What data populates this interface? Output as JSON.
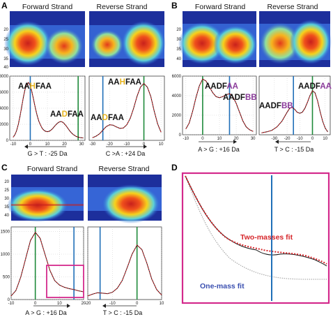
{
  "colors": {
    "green": "#1e8a3a",
    "blue": "#1f6fb8",
    "red_fit": "#d6262b",
    "black_data": "#111111",
    "magenta": "#d42a8c",
    "purple": "#8a3a9a",
    "yellow": "#e6b31e",
    "grey_dots": "#9a9a9a"
  },
  "panels": {
    "A": {
      "label": "A",
      "left_title": "Forward Strand",
      "right_title": "Reverse Strand",
      "left_caption": "G > T : -25 Da",
      "right_caption": "C >A : +24 Da",
      "left_pep1": {
        "p1": "AA",
        "p2": "H",
        "p3": "FAA"
      },
      "left_pep2": {
        "p1": "AA",
        "p2": "D",
        "p3": "FAA"
      },
      "right_pep1": {
        "p1": "AA",
        "p2": "H",
        "p3": "FAA"
      },
      "right_pep2": {
        "p1": "AA",
        "p2": "D",
        "p3": "FAA"
      }
    },
    "B": {
      "label": "B",
      "left_title": "Forward Strand",
      "right_title": "Reverse Strand",
      "left_caption": "A > G : +16 Da",
      "right_caption": "T > C : -15 Da",
      "left_pep1": {
        "p1": "AADF",
        "p2": "AA"
      },
      "left_pep2": {
        "p1": "AADF",
        "p2": "BB"
      },
      "right_pep1": {
        "p1": "AADF",
        "p2": "BB"
      },
      "right_pep2": {
        "p1": "AADF",
        "p2": "AA"
      }
    },
    "C": {
      "label": "C",
      "left_title": "Forward Strand",
      "right_title": "Reverse Strand",
      "left_caption": "A > G : +16 Da",
      "right_caption": "T > C : -15 Da"
    },
    "D": {
      "label": "D",
      "two_mass_label": "Two-masses fit",
      "one_mass_label": "One-mass fit"
    }
  },
  "chart_data": [
    {
      "id": "A-left",
      "type": "line",
      "x": [
        -10,
        -9,
        -8,
        -7,
        -6,
        -5,
        -4,
        -3,
        -2,
        -1,
        0,
        1,
        2,
        3,
        4,
        5,
        6,
        7,
        8,
        9,
        10,
        11,
        12,
        13,
        14,
        15,
        16,
        17,
        18,
        19,
        20,
        21,
        22,
        23,
        24,
        25,
        26,
        27,
        28,
        29,
        30,
        31
      ],
      "series": [
        {
          "values": [
            400,
            700,
            1200,
            2000,
            3000,
            4200,
            5400,
            6400,
            7000,
            7200,
            6800,
            6000,
            5000,
            4000,
            3100,
            2400,
            1900,
            1500,
            1250,
            1120,
            1080,
            1120,
            1250,
            1450,
            1700,
            1950,
            2150,
            2300,
            2350,
            2250,
            2050,
            1800,
            1500,
            1200,
            950,
            750,
            600,
            480,
            400,
            350,
            320,
            300
          ]
        }
      ],
      "xlim": [
        -12,
        32
      ],
      "ylim": [
        0,
        8000
      ],
      "xticks": [
        -10,
        0,
        10,
        20,
        30
      ],
      "yticks": [
        0,
        2000,
        4000,
        6000,
        8000
      ],
      "markers": {
        "green": 28,
        "blue": 0
      }
    },
    {
      "id": "A-right",
      "type": "line",
      "x": [
        -30,
        -28,
        -26,
        -24,
        -22,
        -20,
        -18,
        -16,
        -14,
        -12,
        -10,
        -8,
        -6,
        -4,
        -2,
        0,
        2,
        4,
        6,
        8,
        10
      ],
      "series": [
        {
          "values": [
            300,
            450,
            700,
            1100,
            1500,
            1700,
            1650,
            1450,
            1300,
            1350,
            1700,
            2400,
            3500,
            4800,
            5800,
            6200,
            5800,
            4800,
            3200,
            1800,
            900
          ]
        }
      ],
      "xlim": [
        -32,
        12
      ],
      "ylim": [
        0,
        7000
      ],
      "xticks": [
        -30,
        -20,
        -10,
        0,
        10
      ],
      "yticks": [],
      "markers": {
        "green": 0,
        "blue": -24
      }
    },
    {
      "id": "B-left",
      "type": "line",
      "x": [
        -10,
        -8,
        -6,
        -4,
        -2,
        0,
        2,
        4,
        6,
        8,
        10,
        12,
        14,
        16,
        18,
        20,
        22,
        24,
        26,
        28,
        30
      ],
      "series": [
        {
          "values": [
            600,
            1200,
            2400,
            3800,
            5000,
            5700,
            5500,
            4900,
            4300,
            3900,
            3800,
            3900,
            4100,
            4200,
            3900,
            3200,
            2300,
            1400,
            800,
            500,
            350
          ]
        }
      ],
      "xlim": [
        -12,
        32
      ],
      "ylim": [
        0,
        6000
      ],
      "xticks": [
        -10,
        0,
        10,
        20,
        30
      ],
      "yticks": [
        0,
        2000,
        4000,
        6000
      ],
      "markers": {
        "green": 0,
        "blue": 16
      }
    },
    {
      "id": "B-right",
      "type": "line",
      "x": [
        -40,
        -36,
        -32,
        -28,
        -24,
        -20,
        -18,
        -16,
        -14,
        -12,
        -10,
        -8,
        -6,
        -4,
        -2,
        0,
        2,
        4,
        6,
        8,
        10,
        12
      ],
      "series": [
        {
          "values": [
            200,
            300,
            450,
            800,
            1400,
            2300,
            2700,
            2800,
            2600,
            2300,
            2200,
            2300,
            2700,
            3300,
            4000,
            4500,
            4300,
            3500,
            2400,
            1400,
            700,
            300
          ]
        }
      ],
      "xlim": [
        -42,
        14
      ],
      "ylim": [
        0,
        6000
      ],
      "xticks": [
        -30,
        -20,
        -10,
        0,
        10
      ],
      "yticks": [],
      "markers": {
        "green": 0,
        "blue": -15
      }
    },
    {
      "id": "C-left",
      "type": "line",
      "x": [
        -10,
        -8,
        -6,
        -4,
        -2,
        0,
        2,
        4,
        6,
        8,
        10,
        12,
        14,
        16,
        18,
        20
      ],
      "series": [
        {
          "values": [
            80,
            200,
            500,
            900,
            1300,
            1480,
            1350,
            1000,
            650,
            420,
            320,
            270,
            240,
            220,
            190,
            170
          ]
        }
      ],
      "xlim": [
        -10,
        20
      ],
      "ylim": [
        0,
        1600
      ],
      "xticks": [
        -10,
        0,
        10,
        20
      ],
      "yticks": [
        0,
        500,
        1000,
        1500
      ],
      "markers": {
        "green": 0,
        "blue": 16
      }
    },
    {
      "id": "C-right",
      "type": "line",
      "x": [
        -20,
        -18,
        -16,
        -14,
        -12,
        -10,
        -8,
        -6,
        -4,
        -2,
        0,
        2,
        4,
        6,
        8,
        10
      ],
      "series": [
        {
          "values": [
            80,
            120,
            150,
            140,
            130,
            160,
            250,
            420,
            700,
            1000,
            1200,
            1100,
            800,
            450,
            220,
            100
          ]
        }
      ],
      "xlim": [
        -20,
        10
      ],
      "ylim": [
        0,
        1600
      ],
      "xticks": [
        -20,
        -10,
        0,
        10
      ],
      "yticks": [],
      "markers": {
        "green": 0,
        "blue": -15
      }
    }
  ]
}
